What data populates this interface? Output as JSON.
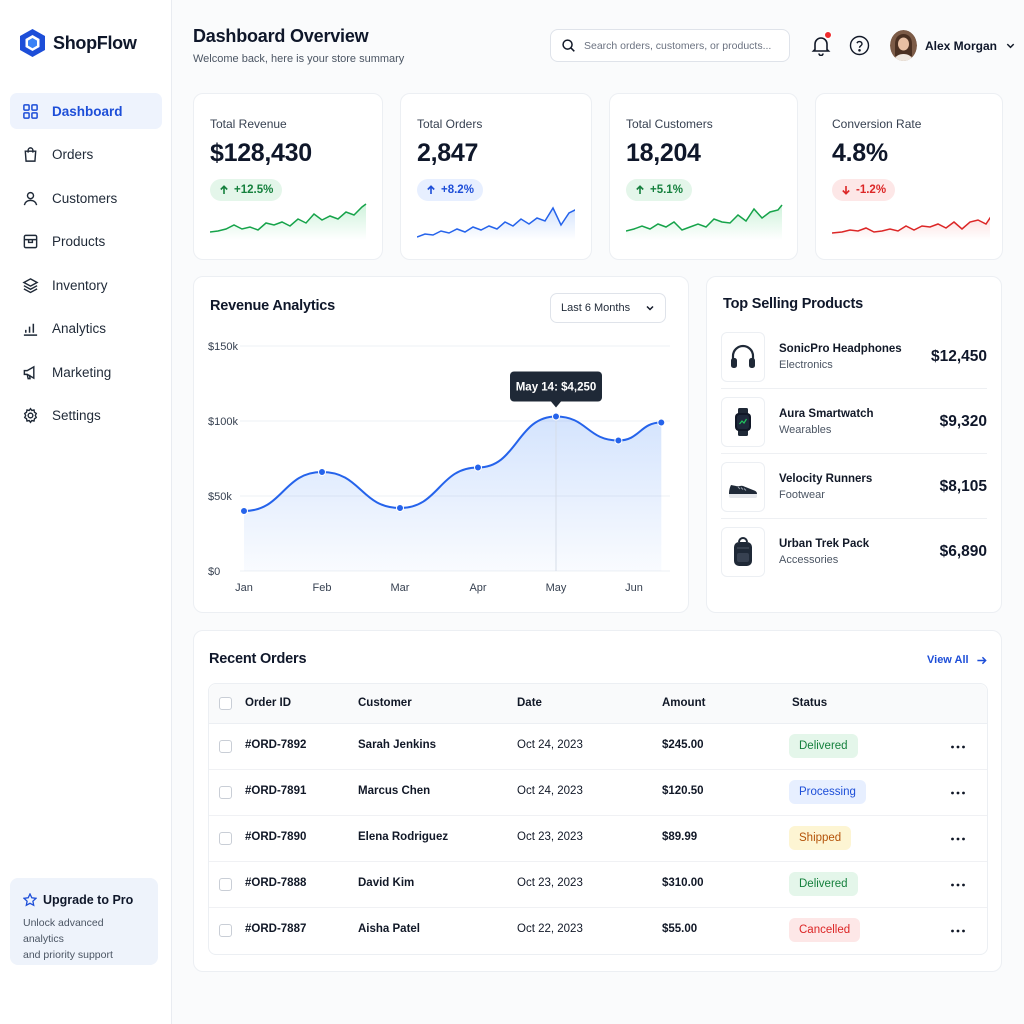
{
  "app": {
    "name": "ShopFlow",
    "logo_icon": "hexagon-logo-icon",
    "accent": "#2563eb"
  },
  "sidebar": {
    "items": [
      {
        "label": "Dashboard",
        "icon": "grid-icon",
        "active": true
      },
      {
        "label": "Orders",
        "icon": "shopping-bag-icon"
      },
      {
        "label": "Customers",
        "icon": "user-icon"
      },
      {
        "label": "Products",
        "icon": "package-icon"
      },
      {
        "label": "Inventory",
        "icon": "layers-icon"
      },
      {
        "label": "Analytics",
        "icon": "bar-chart-icon"
      },
      {
        "label": "Marketing",
        "icon": "megaphone-icon"
      },
      {
        "label": "Settings",
        "icon": "gear-icon"
      }
    ],
    "upgrade": {
      "title": "Upgrade to Pro",
      "text_line1": "Unlock advanced analytics",
      "text_line2": "and priority support",
      "icon": "star-icon"
    }
  },
  "header": {
    "title": "Dashboard Overview",
    "subtitle": "Welcome back, here is your store summary",
    "search_placeholder": "Search orders, customers, or products...",
    "user_name": "Alex Morgan"
  },
  "kpis": [
    {
      "label": "Total Revenue",
      "value": "$128,430",
      "change": "+12.5%",
      "trend": "up",
      "color": "green"
    },
    {
      "label": "Total Orders",
      "value": "2,847",
      "change": "+8.2%",
      "trend": "up",
      "color": "blue"
    },
    {
      "label": "Total Customers",
      "value": "18,204",
      "change": "+5.1%",
      "trend": "up",
      "color": "green"
    },
    {
      "label": "Conversion Rate",
      "value": "4.8%",
      "change": "-1.2%",
      "trend": "down",
      "color": "red"
    }
  ],
  "revenue": {
    "title": "Revenue Analytics",
    "range_label": "Last 6 Months",
    "tooltip": "May 14: $4,250"
  },
  "chart_data": {
    "type": "area",
    "title": "Revenue Analytics",
    "categories": [
      "Jan",
      "Feb",
      "Mar",
      "Apr",
      "May",
      "Jun"
    ],
    "x": [
      0,
      1,
      2,
      3,
      4,
      4.8,
      5.35
    ],
    "values": [
      40000,
      66000,
      42000,
      69000,
      103000,
      87000,
      99000
    ],
    "yticks": [
      "$0",
      "$50k",
      "$100k",
      "$150k"
    ],
    "ylim": [
      0,
      150000
    ],
    "grid": true,
    "color": "#2563eb"
  },
  "top_products": {
    "title": "Top Selling Products",
    "items": [
      {
        "name": "SonicPro Headphones",
        "category": "Electronics",
        "price": "$12,450",
        "icon": "headphones-icon"
      },
      {
        "name": "Aura Smartwatch",
        "category": "Wearables",
        "price": "$9,320",
        "icon": "smartwatch-icon"
      },
      {
        "name": "Velocity Runners",
        "category": "Footwear",
        "price": "$8,105",
        "icon": "sneaker-icon"
      },
      {
        "name": "Urban Trek Pack",
        "category": "Accessories",
        "price": "$6,890",
        "icon": "backpack-icon"
      }
    ]
  },
  "orders": {
    "title": "Recent Orders",
    "view_all": "View All",
    "columns": [
      "Order ID",
      "Customer",
      "Date",
      "Amount",
      "Status"
    ],
    "rows": [
      {
        "id": "#ORD-7892",
        "customer": "Sarah Jenkins",
        "date": "Oct 24, 2023",
        "amount": "$245.00",
        "status": "Delivered"
      },
      {
        "id": "#ORD-7891",
        "customer": "Marcus Chen",
        "date": "Oct 24, 2023",
        "amount": "$120.50",
        "status": "Processing"
      },
      {
        "id": "#ORD-7890",
        "customer": "Elena Rodriguez",
        "date": "Oct 23, 2023",
        "amount": "$89.99",
        "status": "Shipped"
      },
      {
        "id": "#ORD-7888",
        "customer": "David Kim",
        "date": "Oct 23, 2023",
        "amount": "$310.00",
        "status": "Delivered"
      },
      {
        "id": "#ORD-7887",
        "customer": "Aisha Patel",
        "date": "Oct 22, 2023",
        "amount": "$55.00",
        "status": "Cancelled"
      }
    ]
  }
}
